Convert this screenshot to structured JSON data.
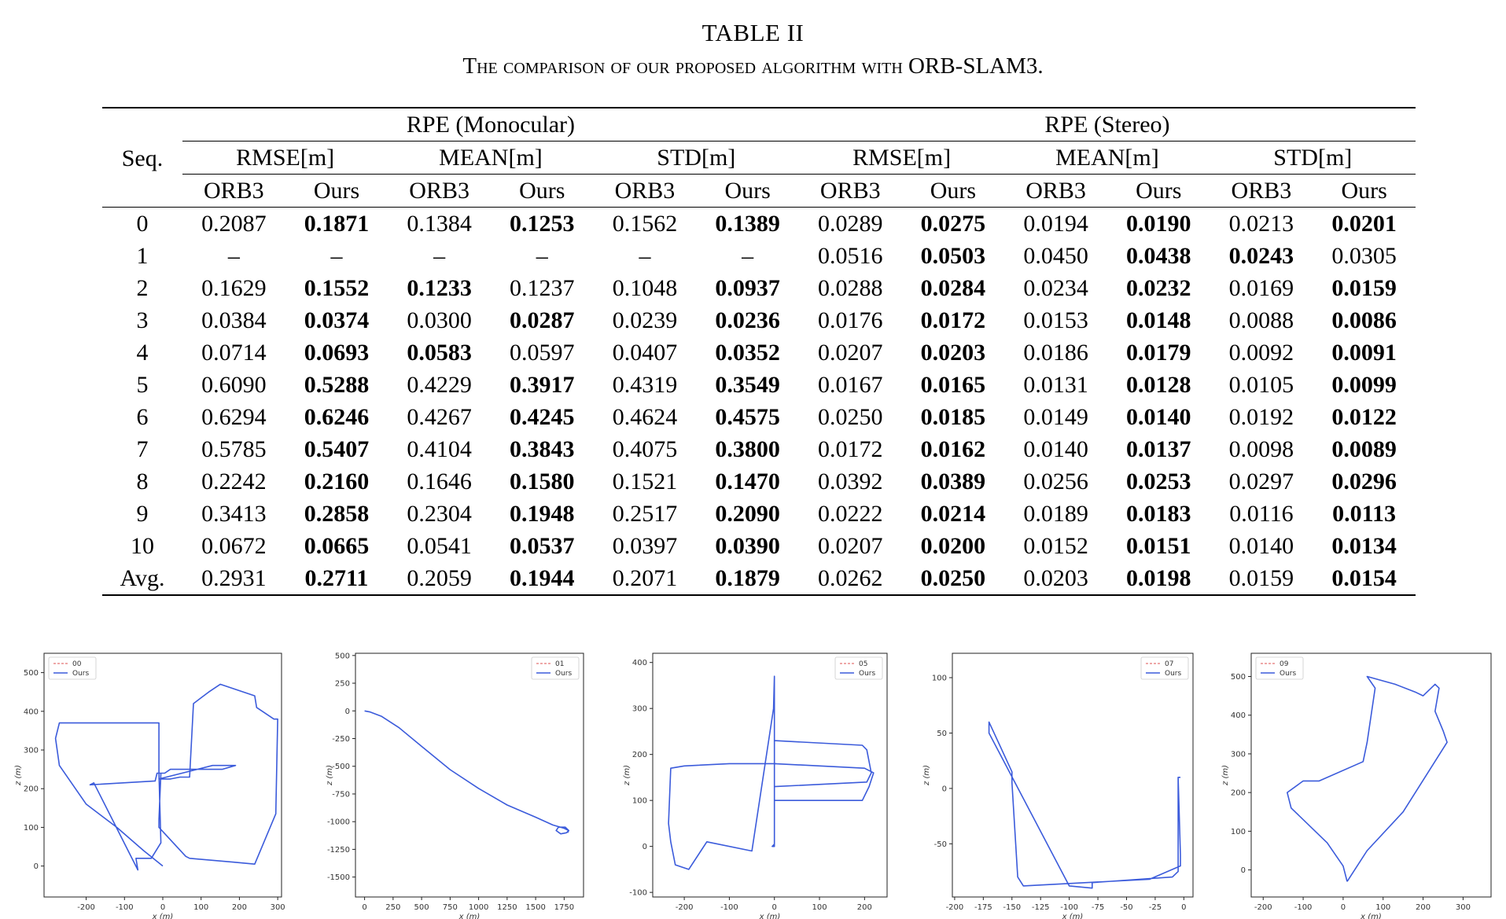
{
  "caption": {
    "table_number": "TABLE II",
    "title": "The comparison of our proposed algorithm with ORB-SLAM3."
  },
  "table": {
    "seq_header": "Seq.",
    "groups": [
      "RPE (Monocular)",
      "RPE (Stereo)"
    ],
    "metrics": [
      "RMSE[m]",
      "MEAN[m]",
      "STD[m]",
      "RMSE[m]",
      "MEAN[m]",
      "STD[m]"
    ],
    "methods": [
      "ORB3",
      "Ours",
      "ORB3",
      "Ours",
      "ORB3",
      "Ours",
      "ORB3",
      "Ours",
      "ORB3",
      "Ours",
      "ORB3",
      "Ours"
    ],
    "rows": [
      {
        "seq": "0",
        "values": [
          "0.2087",
          "0.1871",
          "0.1384",
          "0.1253",
          "0.1562",
          "0.1389",
          "0.0289",
          "0.0275",
          "0.0194",
          "0.0190",
          "0.0213",
          "0.0201"
        ],
        "bold": [
          1,
          3,
          5,
          7,
          9,
          11
        ]
      },
      {
        "seq": "1",
        "values": [
          "–",
          "–",
          "–",
          "–",
          "–",
          "–",
          "0.0516",
          "0.0503",
          "0.0450",
          "0.0438",
          "0.0243",
          "0.0305"
        ],
        "bold": [
          7,
          9,
          10
        ]
      },
      {
        "seq": "2",
        "values": [
          "0.1629",
          "0.1552",
          "0.1233",
          "0.1237",
          "0.1048",
          "0.0937",
          "0.0288",
          "0.0284",
          "0.0234",
          "0.0232",
          "0.0169",
          "0.0159"
        ],
        "bold": [
          1,
          2,
          5,
          7,
          9,
          11
        ]
      },
      {
        "seq": "3",
        "values": [
          "0.0384",
          "0.0374",
          "0.0300",
          "0.0287",
          "0.0239",
          "0.0236",
          "0.0176",
          "0.0172",
          "0.0153",
          "0.0148",
          "0.0088",
          "0.0086"
        ],
        "bold": [
          1,
          3,
          5,
          7,
          9,
          11
        ]
      },
      {
        "seq": "4",
        "values": [
          "0.0714",
          "0.0693",
          "0.0583",
          "0.0597",
          "0.0407",
          "0.0352",
          "0.0207",
          "0.0203",
          "0.0186",
          "0.0179",
          "0.0092",
          "0.0091"
        ],
        "bold": [
          1,
          2,
          5,
          7,
          9,
          11
        ]
      },
      {
        "seq": "5",
        "values": [
          "0.6090",
          "0.5288",
          "0.4229",
          "0.3917",
          "0.4319",
          "0.3549",
          "0.0167",
          "0.0165",
          "0.0131",
          "0.0128",
          "0.0105",
          "0.0099"
        ],
        "bold": [
          1,
          3,
          5,
          7,
          9,
          11
        ]
      },
      {
        "seq": "6",
        "values": [
          "0.6294",
          "0.6246",
          "0.4267",
          "0.4245",
          "0.4624",
          "0.4575",
          "0.0250",
          "0.0185",
          "0.0149",
          "0.0140",
          "0.0192",
          "0.0122"
        ],
        "bold": [
          1,
          3,
          5,
          7,
          9,
          11
        ]
      },
      {
        "seq": "7",
        "values": [
          "0.5785",
          "0.5407",
          "0.4104",
          "0.3843",
          "0.4075",
          "0.3800",
          "0.0172",
          "0.0162",
          "0.0140",
          "0.0137",
          "0.0098",
          "0.0089"
        ],
        "bold": [
          1,
          3,
          5,
          7,
          9,
          11
        ]
      },
      {
        "seq": "8",
        "values": [
          "0.2242",
          "0.2160",
          "0.1646",
          "0.1580",
          "0.1521",
          "0.1470",
          "0.0392",
          "0.0389",
          "0.0256",
          "0.0253",
          "0.0297",
          "0.0296"
        ],
        "bold": [
          1,
          3,
          5,
          7,
          9,
          11
        ]
      },
      {
        "seq": "9",
        "values": [
          "0.3413",
          "0.2858",
          "0.2304",
          "0.1948",
          "0.2517",
          "0.2090",
          "0.0222",
          "0.0214",
          "0.0189",
          "0.0183",
          "0.0116",
          "0.0113"
        ],
        "bold": [
          1,
          3,
          5,
          7,
          9,
          11
        ]
      },
      {
        "seq": "10",
        "values": [
          "0.0672",
          "0.0665",
          "0.0541",
          "0.0537",
          "0.0397",
          "0.0390",
          "0.0207",
          "0.0200",
          "0.0152",
          "0.0151",
          "0.0140",
          "0.0134"
        ],
        "bold": [
          1,
          3,
          5,
          7,
          9,
          11
        ]
      },
      {
        "seq": "Avg.",
        "values": [
          "0.2931",
          "0.2711",
          "0.2059",
          "0.1944",
          "0.2071",
          "0.1879",
          "0.0262",
          "0.0250",
          "0.0203",
          "0.0198",
          "0.0159",
          "0.0154"
        ],
        "bold": [
          1,
          3,
          5,
          7,
          9,
          11
        ]
      }
    ]
  },
  "chart_data": [
    {
      "type": "line",
      "legend": [
        "00",
        "Ours"
      ],
      "legend_position": "top-left",
      "xlabel": "x (m)",
      "ylabel": "z (m)",
      "xlim": [
        -310,
        310
      ],
      "ylim": [
        -80,
        550
      ],
      "xticks": [
        "-200",
        "-100",
        "0",
        "100",
        "200",
        "300"
      ],
      "xtick_values": [
        -200,
        -100,
        0,
        100,
        200,
        300
      ],
      "yticks": [
        "0",
        "100",
        "200",
        "300",
        "400",
        "500"
      ],
      "ytick_values": [
        0,
        100,
        200,
        300,
        400,
        500
      ],
      "series": [
        {
          "name": "Ours",
          "color": "#3b5bdb",
          "x": [
            0,
            -50,
            -120,
            -200,
            -270,
            -280,
            -270,
            -200,
            -130,
            -10,
            -10,
            -5,
            -30,
            -70,
            -65,
            -180,
            -190,
            -20,
            -15,
            5,
            20,
            50,
            80,
            155,
            190,
            130,
            -10,
            20,
            45,
            70,
            80,
            120,
            150,
            240,
            245,
            260,
            290,
            300,
            295,
            240,
            185,
            70,
            60,
            -10,
            -10,
            -5
          ],
          "z": [
            0,
            40,
            100,
            160,
            260,
            330,
            370,
            370,
            370,
            370,
            240,
            60,
            20,
            20,
            -10,
            215,
            210,
            220,
            240,
            240,
            250,
            250,
            250,
            250,
            260,
            260,
            225,
            225,
            230,
            230,
            420,
            450,
            470,
            440,
            410,
            400,
            380,
            380,
            135,
            5,
            10,
            20,
            25,
            100,
            120,
            240
          ]
        }
      ]
    },
    {
      "type": "line",
      "legend": [
        "01",
        "Ours"
      ],
      "legend_position": "top-right",
      "xlabel": "x (m)",
      "ylabel": "z (m)",
      "xlim": [
        -80,
        1920
      ],
      "ylim": [
        -1680,
        520
      ],
      "xticks": [
        "0",
        "250",
        "500",
        "750",
        "1000",
        "1250",
        "1500",
        "1750"
      ],
      "xtick_values": [
        0,
        250,
        500,
        750,
        1000,
        1250,
        1500,
        1750
      ],
      "yticks": [
        "500",
        "250",
        "0",
        "-250",
        "-500",
        "-750",
        "-1000",
        "-1250",
        "-1500"
      ],
      "ytick_values": [
        500,
        250,
        0,
        -250,
        -500,
        -750,
        -1000,
        -1250,
        -1500
      ],
      "series": [
        {
          "name": "Ours",
          "color": "#3b5bdb",
          "x": [
            0,
            50,
            150,
            300,
            500,
            750,
            1000,
            1250,
            1500,
            1650,
            1750,
            1790,
            1770,
            1720,
            1680,
            1700,
            1760,
            1790,
            1780
          ],
          "z": [
            0,
            -10,
            -50,
            -150,
            -320,
            -530,
            -700,
            -850,
            -960,
            -1030,
            -1060,
            -1080,
            -1100,
            -1110,
            -1080,
            -1050,
            -1050,
            -1080,
            -1100
          ]
        }
      ]
    },
    {
      "type": "line",
      "legend": [
        "05",
        "Ours"
      ],
      "legend_position": "top-right",
      "xlabel": "x (m)",
      "ylabel": "z (m)",
      "xlim": [
        -270,
        250
      ],
      "ylim": [
        -110,
        420
      ],
      "xticks": [
        "-200",
        "-100",
        "0",
        "100",
        "200"
      ],
      "xtick_values": [
        -200,
        -100,
        0,
        100,
        200
      ],
      "yticks": [
        "-100",
        "0",
        "100",
        "200",
        "300",
        "400"
      ],
      "ytick_values": [
        -100,
        0,
        100,
        200,
        300,
        400
      ],
      "series": [
        {
          "name": "Ours",
          "color": "#3b5bdb",
          "x": [
            0,
            -5,
            0,
            0,
            -2,
            -50,
            -150,
            -190,
            -220,
            -230,
            -235,
            -230,
            -200,
            -100,
            0,
            200,
            220,
            210,
            195,
            0,
            0,
            205,
            215,
            205,
            195,
            0,
            0,
            5
          ],
          "z": [
            5,
            0,
            0,
            370,
            300,
            -10,
            10,
            -50,
            -40,
            10,
            50,
            170,
            175,
            180,
            180,
            170,
            160,
            130,
            100,
            100,
            130,
            140,
            160,
            210,
            220,
            230,
            180,
            180
          ]
        }
      ]
    },
    {
      "type": "line",
      "legend": [
        "07",
        "Ours"
      ],
      "legend_position": "top-right",
      "xlabel": "x (m)",
      "ylabel": "z (m)",
      "xlim": [
        -202,
        8
      ],
      "ylim": [
        -98,
        122
      ],
      "xticks": [
        "-200",
        "-175",
        "-150",
        "-125",
        "-100",
        "-75",
        "-50",
        "-25",
        "0"
      ],
      "xtick_values": [
        -200,
        -175,
        -150,
        -125,
        -100,
        -75,
        -50,
        -25,
        0
      ],
      "yticks": [
        "-50",
        "0",
        "50",
        "100"
      ],
      "ytick_values": [
        -50,
        0,
        50,
        100
      ],
      "series": [
        {
          "name": "Ours",
          "color": "#3b5bdb",
          "x": [
            -5,
            -5,
            -10,
            -80,
            -80,
            -100,
            -170,
            -170,
            -150,
            -150,
            -145,
            -140,
            -30,
            -3,
            -3,
            -5,
            -3
          ],
          "z": [
            10,
            -75,
            -80,
            -85,
            -90,
            -88,
            50,
            60,
            15,
            5,
            -80,
            -88,
            -82,
            -70,
            -60,
            10,
            10
          ]
        }
      ]
    },
    {
      "type": "line",
      "legend": [
        "09",
        "Ours"
      ],
      "legend_position": "top-left",
      "xlabel": "x (m)",
      "ylabel": "z (m)",
      "xlim": [
        -230,
        370
      ],
      "ylim": [
        -70,
        560
      ],
      "xticks": [
        "-200",
        "-100",
        "0",
        "100",
        "200",
        "300"
      ],
      "xtick_values": [
        -200,
        -100,
        0,
        100,
        200,
        300
      ],
      "yticks": [
        "0",
        "100",
        "200",
        "300",
        "400",
        "500"
      ],
      "ytick_values": [
        0,
        100,
        200,
        300,
        400,
        500
      ],
      "series": [
        {
          "name": "Ours",
          "color": "#3b5bdb",
          "x": [
            10,
            0,
            -40,
            -130,
            -140,
            -100,
            -60,
            50,
            60,
            80,
            60,
            130,
            180,
            200,
            230,
            240,
            230,
            250,
            260,
            150,
            60,
            10
          ],
          "z": [
            -30,
            10,
            70,
            160,
            200,
            230,
            230,
            280,
            330,
            470,
            500,
            480,
            460,
            450,
            480,
            470,
            410,
            360,
            330,
            150,
            50,
            -30
          ]
        }
      ]
    }
  ]
}
